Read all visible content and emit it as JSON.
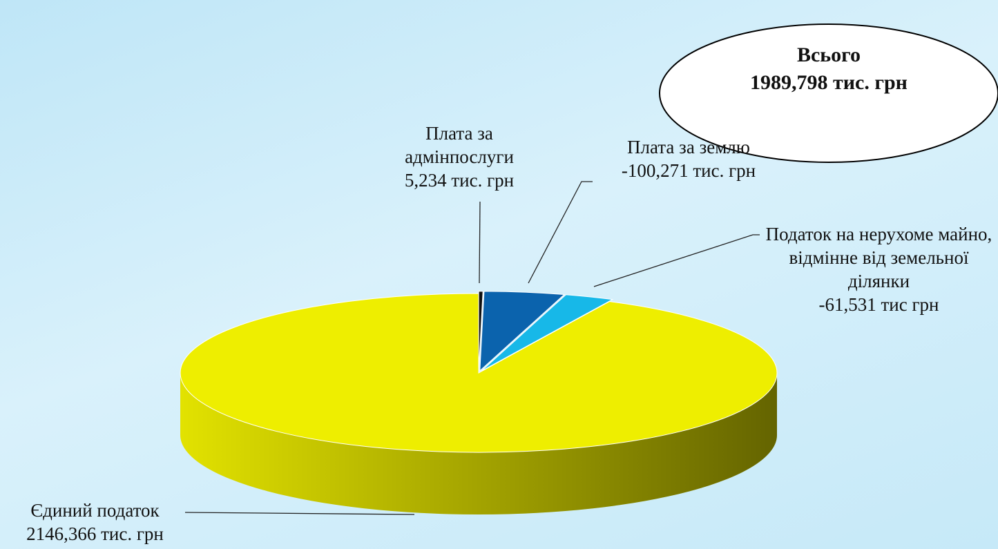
{
  "chart_data": {
    "type": "pie3d",
    "categories": [
      "Плата за адмінпослуги",
      "Плата за землю",
      "Податок на нерухоме майно, відмінне від земельної ділянки",
      "Єдиний податок"
    ],
    "values": [
      5.234,
      -100.271,
      -61.531,
      2146.366
    ],
    "value_labels": [
      "5,234 тис. грн",
      "-100,271 тис. грн",
      "-61,531 тис грн",
      "2146,366 тис. грн"
    ],
    "colors": [
      "#111111",
      "#0b63ad",
      "#17b8e8",
      "#eeee00"
    ],
    "annotations": [
      "Всього",
      "1989,798 тис. грн"
    ]
  }
}
